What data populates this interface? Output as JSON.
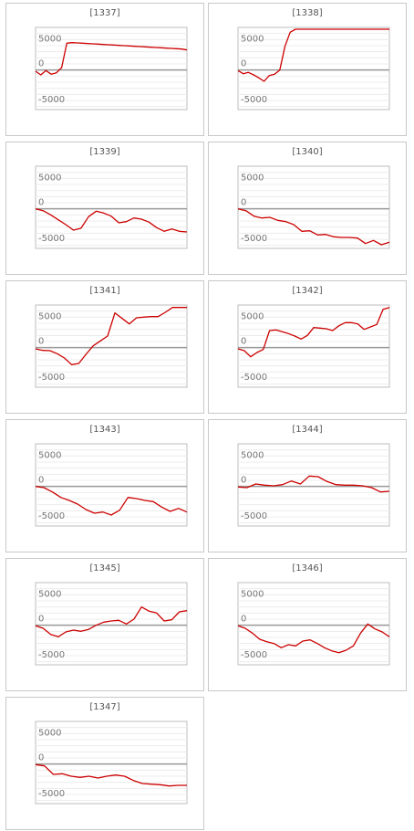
{
  "chart_data": [
    {
      "type": "line",
      "title": "[1337]",
      "ylim": [
        -6500,
        7000
      ],
      "y_ticks": [
        5000,
        0,
        -5000
      ],
      "zero_line": true,
      "color": "#cc0000",
      "series": [
        {
          "values": [
            -200,
            -800,
            -100,
            -700,
            -450,
            400,
            4400,
            4500,
            4450,
            4400,
            4350,
            4300,
            4250,
            4200,
            4150,
            4100,
            4050,
            4000,
            3950,
            3900,
            3850,
            3800,
            3750,
            3700,
            3650,
            3600,
            3550,
            3500,
            3450,
            3300
          ]
        }
      ]
    },
    {
      "type": "line",
      "title": "[1338]",
      "ylim": [
        -6500,
        7000
      ],
      "y_ticks": [
        5000,
        0,
        -5000
      ],
      "zero_line": true,
      "color": "#cc0000",
      "series": [
        {
          "values": [
            -100,
            -600,
            -400,
            -800,
            -1300,
            -1850,
            -900,
            -700,
            0,
            3900,
            6200,
            6700,
            6700,
            6700,
            6700,
            6700,
            6700,
            6700,
            6700,
            6700,
            6700,
            6700,
            6700,
            6700,
            6700,
            6700,
            6700,
            6700,
            6700,
            6700
          ]
        }
      ]
    },
    {
      "type": "line",
      "title": "[1339]",
      "ylim": [
        -6500,
        7000
      ],
      "y_ticks": [
        5000,
        0,
        -5000
      ],
      "zero_line": true,
      "color": "#cc0000",
      "series": [
        {
          "values": [
            0,
            -300,
            -1000,
            -1800,
            -2600,
            -3500,
            -3200,
            -1300,
            -400,
            -700,
            -1200,
            -2300,
            -2100,
            -1500,
            -1700,
            -2200,
            -3100,
            -3700,
            -3300,
            -3700,
            -3800
          ]
        }
      ]
    },
    {
      "type": "line",
      "title": "[1340]",
      "ylim": [
        -6500,
        7000
      ],
      "y_ticks": [
        5000,
        0,
        -5000
      ],
      "zero_line": true,
      "color": "#cc0000",
      "series": [
        {
          "values": [
            0,
            -300,
            -1200,
            -1500,
            -1400,
            -1900,
            -2100,
            -2600,
            -3700,
            -3600,
            -4300,
            -4200,
            -4600,
            -4700,
            -4700,
            -4800,
            -5700,
            -5200,
            -5900,
            -5500
          ]
        }
      ]
    },
    {
      "type": "line",
      "title": "[1341]",
      "ylim": [
        -6500,
        7000
      ],
      "y_ticks": [
        5000,
        0,
        -5000
      ],
      "zero_line": true,
      "color": "#cc0000",
      "series": [
        {
          "values": [
            -200,
            -450,
            -500,
            -1000,
            -1700,
            -2800,
            -2600,
            -1100,
            300,
            1100,
            1900,
            5700,
            4800,
            3900,
            4900,
            5000,
            5100,
            5100,
            5800,
            6600,
            6600,
            6600
          ]
        }
      ]
    },
    {
      "type": "line",
      "title": "[1342]",
      "ylim": [
        -6500,
        7000
      ],
      "y_ticks": [
        5000,
        0,
        -5000
      ],
      "zero_line": true,
      "color": "#cc0000",
      "series": [
        {
          "values": [
            -200,
            -500,
            -1500,
            -800,
            -300,
            2800,
            2900,
            2600,
            2300,
            1900,
            1400,
            2000,
            3300,
            3200,
            3100,
            2800,
            3600,
            4100,
            4100,
            3900,
            3000,
            3400,
            3800,
            6300,
            6600
          ]
        }
      ]
    },
    {
      "type": "line",
      "title": "[1343]",
      "ylim": [
        -6500,
        7000
      ],
      "y_ticks": [
        5000,
        0,
        -5000
      ],
      "zero_line": true,
      "color": "#cc0000",
      "series": [
        {
          "values": [
            0,
            -200,
            -900,
            -1800,
            -2300,
            -2900,
            -3800,
            -4400,
            -4200,
            -4700,
            -3900,
            -1800,
            -2000,
            -2300,
            -2500,
            -3400,
            -4100,
            -3600,
            -4200
          ]
        }
      ]
    },
    {
      "type": "line",
      "title": "[1344]",
      "ylim": [
        -6500,
        7000
      ],
      "y_ticks": [
        5000,
        0,
        -5000
      ],
      "zero_line": true,
      "color": "#cc0000",
      "series": [
        {
          "values": [
            -100,
            -200,
            400,
            200,
            100,
            300,
            900,
            400,
            1700,
            1600,
            800,
            300,
            200,
            200,
            100,
            -200,
            -900,
            -800
          ]
        }
      ]
    },
    {
      "type": "line",
      "title": "[1345]",
      "ylim": [
        -6500,
        7000
      ],
      "y_ticks": [
        5000,
        0,
        -5000
      ],
      "zero_line": true,
      "color": "#cc0000",
      "series": [
        {
          "values": [
            -100,
            -500,
            -1500,
            -1900,
            -1100,
            -800,
            -1000,
            -700,
            0,
            500,
            700,
            800,
            200,
            1000,
            3000,
            2300,
            2000,
            700,
            900,
            2200,
            2400
          ]
        }
      ]
    },
    {
      "type": "line",
      "title": "[1346]",
      "ylim": [
        -6500,
        7000
      ],
      "y_ticks": [
        5000,
        0,
        -5000
      ],
      "zero_line": true,
      "color": "#cc0000",
      "series": [
        {
          "values": [
            -100,
            -500,
            -1300,
            -2300,
            -2700,
            -3000,
            -3700,
            -3200,
            -3400,
            -2600,
            -2400,
            -3000,
            -3700,
            -4200,
            -4500,
            -4100,
            -3400,
            -1300,
            200,
            -600,
            -1100,
            -1900
          ]
        }
      ]
    },
    {
      "type": "line",
      "title": "[1347]",
      "ylim": [
        -6500,
        7000
      ],
      "y_ticks": [
        5000,
        0,
        -5000
      ],
      "zero_line": true,
      "color": "#cc0000",
      "series": [
        {
          "values": [
            -100,
            -300,
            -1700,
            -1600,
            -2000,
            -2200,
            -2000,
            -2300,
            -2000,
            -1800,
            -2000,
            -2700,
            -3200,
            -3300,
            -3400,
            -3600,
            -3500,
            -3500
          ]
        }
      ]
    }
  ]
}
